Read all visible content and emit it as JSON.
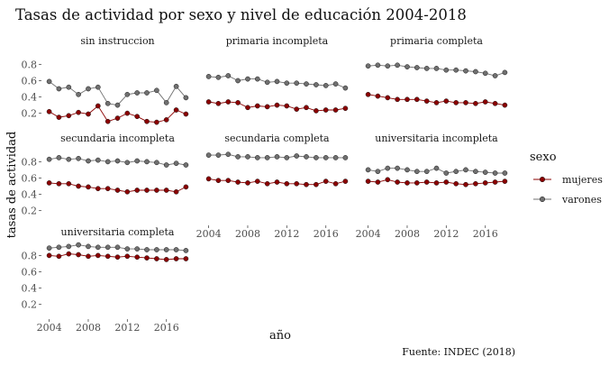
{
  "chart_data": {
    "type": "line",
    "title": "Tasas de actividad por sexo y nivel de educación 2004-2018",
    "xlabel": "año",
    "ylabel": "tasas de actividad",
    "caption": "Fuente: INDEC (2018)",
    "legend_title": "sexo",
    "legend_position": "right",
    "grid": false,
    "x": [
      2004,
      2005,
      2006,
      2007,
      2008,
      2009,
      2010,
      2011,
      2012,
      2013,
      2014,
      2015,
      2016,
      2017,
      2018
    ],
    "xlim": [
      2003.3,
      2018.7
    ],
    "x_ticks": [
      2004,
      2008,
      2012,
      2016
    ],
    "ylim": [
      0.03,
      0.97
    ],
    "y_ticks": [
      0.2,
      0.4,
      0.6,
      0.8
    ],
    "series_styles": [
      {
        "name": "mujeres",
        "color": "#8b0000"
      },
      {
        "name": "varones",
        "color": "#707070"
      }
    ],
    "panels": [
      {
        "label": "sin instruccion",
        "mujeres": [
          0.22,
          0.15,
          0.17,
          0.21,
          0.19,
          0.29,
          0.1,
          0.14,
          0.2,
          0.16,
          0.1,
          0.09,
          0.12,
          0.24,
          0.19
        ],
        "varones": [
          0.59,
          0.5,
          0.52,
          0.43,
          0.5,
          0.52,
          0.32,
          0.3,
          0.43,
          0.45,
          0.45,
          0.48,
          0.33,
          0.53,
          0.39
        ]
      },
      {
        "label": "primaria incompleta",
        "mujeres": [
          0.34,
          0.32,
          0.34,
          0.33,
          0.27,
          0.29,
          0.28,
          0.3,
          0.29,
          0.25,
          0.27,
          0.23,
          0.24,
          0.24,
          0.26
        ],
        "varones": [
          0.65,
          0.64,
          0.66,
          0.6,
          0.62,
          0.62,
          0.58,
          0.59,
          0.57,
          0.57,
          0.56,
          0.55,
          0.54,
          0.56,
          0.51
        ]
      },
      {
        "label": "primaria completa",
        "mujeres": [
          0.43,
          0.41,
          0.39,
          0.37,
          0.37,
          0.37,
          0.35,
          0.33,
          0.35,
          0.33,
          0.33,
          0.32,
          0.34,
          0.32,
          0.3
        ],
        "varones": [
          0.78,
          0.79,
          0.78,
          0.79,
          0.77,
          0.76,
          0.75,
          0.75,
          0.73,
          0.73,
          0.72,
          0.71,
          0.69,
          0.66,
          0.7
        ]
      },
      {
        "label": "secundaria incompleta",
        "mujeres": [
          0.54,
          0.53,
          0.53,
          0.5,
          0.49,
          0.47,
          0.47,
          0.45,
          0.43,
          0.45,
          0.45,
          0.45,
          0.45,
          0.43,
          0.49
        ],
        "varones": [
          0.83,
          0.85,
          0.83,
          0.84,
          0.81,
          0.82,
          0.8,
          0.81,
          0.79,
          0.81,
          0.8,
          0.79,
          0.76,
          0.78,
          0.76
        ]
      },
      {
        "label": "secundaria completa",
        "mujeres": [
          0.59,
          0.57,
          0.57,
          0.55,
          0.54,
          0.56,
          0.53,
          0.55,
          0.53,
          0.53,
          0.52,
          0.52,
          0.56,
          0.53,
          0.56
        ],
        "varones": [
          0.88,
          0.88,
          0.89,
          0.86,
          0.86,
          0.85,
          0.85,
          0.86,
          0.85,
          0.87,
          0.86,
          0.85,
          0.85,
          0.85,
          0.85
        ]
      },
      {
        "label": "universitaria incompleta",
        "mujeres": [
          0.56,
          0.55,
          0.58,
          0.55,
          0.54,
          0.54,
          0.55,
          0.54,
          0.55,
          0.53,
          0.52,
          0.53,
          0.54,
          0.55,
          0.56
        ],
        "varones": [
          0.7,
          0.68,
          0.72,
          0.72,
          0.7,
          0.68,
          0.68,
          0.72,
          0.66,
          0.68,
          0.7,
          0.68,
          0.67,
          0.66,
          0.66
        ]
      },
      {
        "label": "universitaria completa",
        "mujeres": [
          0.8,
          0.79,
          0.82,
          0.81,
          0.79,
          0.8,
          0.79,
          0.78,
          0.79,
          0.78,
          0.77,
          0.76,
          0.75,
          0.76,
          0.76
        ],
        "varones": [
          0.89,
          0.9,
          0.91,
          0.93,
          0.91,
          0.9,
          0.9,
          0.9,
          0.88,
          0.88,
          0.87,
          0.87,
          0.87,
          0.87,
          0.86
        ]
      }
    ]
  }
}
